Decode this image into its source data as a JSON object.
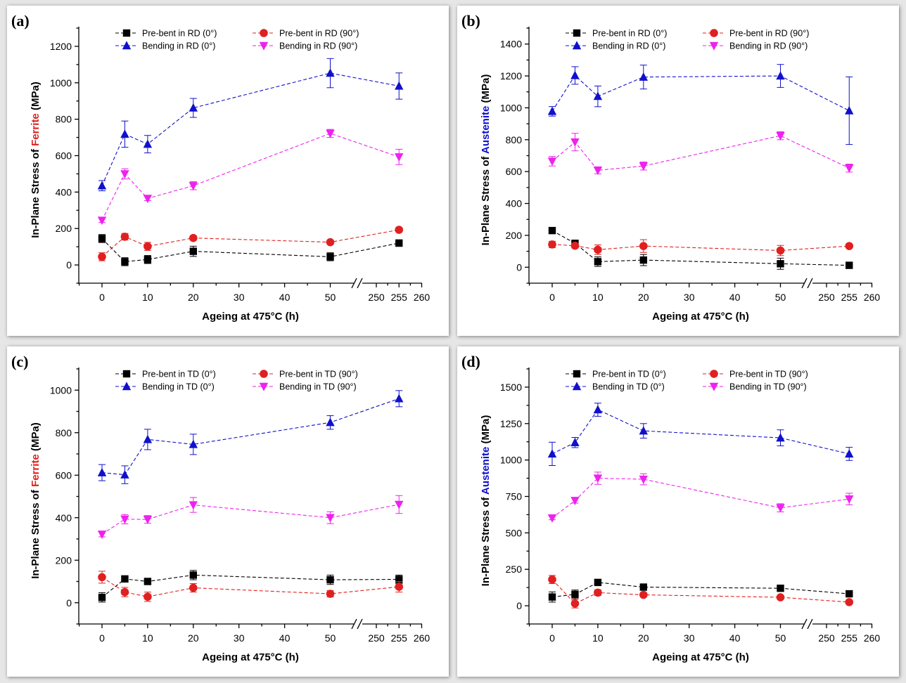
{
  "chart_data": [
    {
      "type": "line",
      "panel": "(a)",
      "xlabel": "Ageing at 475°C (h)",
      "ylabel_prefix": "In-Plane Stress of ",
      "ylabel_phase": "Ferrite",
      "ylabel_suffix": " (MPa)",
      "phase_color": "#e02020",
      "x": [
        0,
        5,
        10,
        20,
        50,
        255
      ],
      "x_ticks": [
        0,
        10,
        20,
        30,
        40,
        50,
        250,
        255,
        260
      ],
      "y_ticks": [
        0,
        200,
        400,
        600,
        800,
        1000,
        1200
      ],
      "ylim": [
        -100,
        1300
      ],
      "axis_break": true,
      "series": [
        {
          "name": "Pre-bent in RD (0°)",
          "color": "#000000",
          "marker": "square",
          "values": [
            145,
            18,
            30,
            75,
            45,
            120
          ],
          "errors": [
            22,
            22,
            22,
            28,
            22,
            18
          ]
        },
        {
          "name": "Pre-bent in RD (90°)",
          "color": "#e02020",
          "marker": "circle",
          "values": [
            45,
            155,
            102,
            148,
            125,
            193
          ],
          "errors": [
            22,
            18,
            22,
            12,
            10,
            12
          ]
        },
        {
          "name": "Bending in RD (0°)",
          "color": "#1010cc",
          "marker": "triangle-up",
          "values": [
            435,
            718,
            663,
            862,
            1053,
            982
          ],
          "errors": [
            28,
            72,
            48,
            52,
            80,
            72
          ]
        },
        {
          "name": "Bending in RD (90°)",
          "color": "#ee22ee",
          "marker": "triangle-down",
          "values": [
            245,
            500,
            365,
            435,
            722,
            593
          ],
          "errors": [
            12,
            28,
            12,
            22,
            22,
            42
          ]
        }
      ]
    },
    {
      "type": "line",
      "panel": "(b)",
      "xlabel": "Ageing at 475°C (h)",
      "ylabel_prefix": "In-Plane Stress of ",
      "ylabel_phase": "Austenite",
      "ylabel_suffix": " (MPa)",
      "phase_color": "#1010cc",
      "x": [
        0,
        5,
        10,
        20,
        50,
        255
      ],
      "x_ticks": [
        0,
        10,
        20,
        30,
        40,
        50,
        250,
        255,
        260
      ],
      "y_ticks": [
        0,
        200,
        400,
        600,
        800,
        1000,
        1200,
        1400
      ],
      "ylim": [
        -100,
        1500
      ],
      "axis_break": true,
      "series": [
        {
          "name": "Pre-bent in RD (0°)",
          "color": "#000000",
          "marker": "square",
          "values": [
            230,
            150,
            35,
            45,
            22,
            12
          ],
          "errors": [
            12,
            10,
            30,
            35,
            35,
            8
          ]
        },
        {
          "name": "Pre-bent in RD (90°)",
          "color": "#e02020",
          "marker": "circle",
          "values": [
            143,
            135,
            110,
            133,
            105,
            133
          ],
          "errors": [
            20,
            15,
            30,
            40,
            32,
            10
          ]
        },
        {
          "name": "Bending in RD (0°)",
          "color": "#1010cc",
          "marker": "triangle-up",
          "values": [
            978,
            1203,
            1072,
            1193,
            1200,
            982
          ],
          "errors": [
            30,
            55,
            65,
            75,
            72,
            212
          ]
        },
        {
          "name": "Bending in RD (90°)",
          "color": "#ee22ee",
          "marker": "triangle-down",
          "values": [
            665,
            785,
            608,
            635,
            825,
            622
          ],
          "errors": [
            30,
            55,
            22,
            25,
            25,
            25
          ]
        }
      ]
    },
    {
      "type": "line",
      "panel": "(c)",
      "xlabel": "Ageing at 475°C (h)",
      "ylabel_prefix": "In-Plane Stress of ",
      "ylabel_phase": "Ferrite",
      "ylabel_suffix": " (MPa)",
      "phase_color": "#e02020",
      "x": [
        0,
        5,
        10,
        20,
        50,
        255
      ],
      "x_ticks": [
        0,
        10,
        20,
        30,
        40,
        50,
        250,
        255,
        260
      ],
      "y_ticks": [
        0,
        200,
        400,
        600,
        800,
        1000
      ],
      "ylim": [
        -100,
        1100
      ],
      "axis_break": true,
      "series": [
        {
          "name": "Pre-bent in TD (0°)",
          "color": "#000000",
          "marker": "square",
          "values": [
            25,
            112,
            100,
            130,
            108,
            110
          ],
          "errors": [
            22,
            10,
            8,
            22,
            22,
            20
          ]
        },
        {
          "name": "Pre-bent in TD (90°)",
          "color": "#e02020",
          "marker": "circle",
          "values": [
            120,
            50,
            28,
            70,
            42,
            75
          ],
          "errors": [
            28,
            22,
            22,
            20,
            15,
            25
          ]
        },
        {
          "name": "Bending in TD (0°)",
          "color": "#1010cc",
          "marker": "triangle-up",
          "values": [
            612,
            602,
            768,
            745,
            848,
            960
          ],
          "errors": [
            38,
            42,
            48,
            48,
            32,
            38
          ]
        },
        {
          "name": "Bending in TD (90°)",
          "color": "#ee22ee",
          "marker": "triangle-down",
          "values": [
            322,
            393,
            392,
            460,
            400,
            462
          ],
          "errors": [
            12,
            22,
            18,
            35,
            28,
            42
          ]
        }
      ]
    },
    {
      "type": "line",
      "panel": "(d)",
      "xlabel": "Ageing at 475°C (h)",
      "ylabel_prefix": "In-Plane Stress of ",
      "ylabel_phase": "Austenite",
      "ylabel_suffix": " (MPa)",
      "phase_color": "#1010cc",
      "x": [
        0,
        5,
        10,
        20,
        50,
        255
      ],
      "x_ticks": [
        0,
        10,
        20,
        30,
        40,
        50,
        250,
        255,
        260
      ],
      "y_ticks": [
        0,
        250,
        500,
        750,
        1000,
        1250,
        1500
      ],
      "ylim": [
        -125,
        1625
      ],
      "axis_break": true,
      "series": [
        {
          "name": "Pre-bent in TD (0°)",
          "color": "#000000",
          "marker": "square",
          "values": [
            60,
            78,
            160,
            128,
            120,
            82
          ],
          "errors": [
            35,
            30,
            12,
            12,
            15,
            10
          ]
        },
        {
          "name": "Pre-bent in TD (90°)",
          "color": "#e02020",
          "marker": "circle",
          "values": [
            180,
            15,
            90,
            75,
            58,
            25
          ],
          "errors": [
            28,
            30,
            20,
            10,
            10,
            8
          ]
        },
        {
          "name": "Bending in TD (0°)",
          "color": "#1010cc",
          "marker": "triangle-up",
          "values": [
            1042,
            1120,
            1345,
            1200,
            1152,
            1042
          ],
          "errors": [
            80,
            35,
            45,
            50,
            55,
            45
          ]
        },
        {
          "name": "Bending in TD (90°)",
          "color": "#ee22ee",
          "marker": "triangle-down",
          "values": [
            602,
            722,
            875,
            868,
            672,
            732
          ],
          "errors": [
            12,
            18,
            42,
            38,
            28,
            40
          ]
        }
      ]
    }
  ]
}
